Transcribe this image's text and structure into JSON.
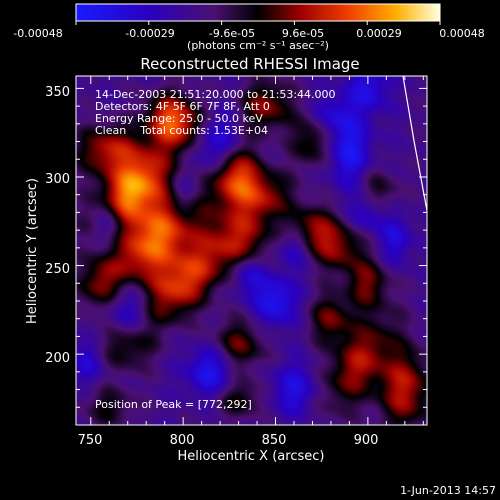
{
  "chart_data": {
    "type": "heatmap",
    "title": "Reconstructed RHESSI Image",
    "xlabel": "Heliocentric X (arcsec)",
    "ylabel": "Heliocentric Y (arcsec)",
    "xlim": [
      742,
      932
    ],
    "ylim": [
      160,
      357
    ],
    "x_ticks": [
      750,
      800,
      850,
      900
    ],
    "y_ticks": [
      200,
      250,
      300,
      350
    ],
    "colorbar": {
      "ticks": [
        "-0.00048",
        "-0.00029",
        "-9.6e-05",
        "9.6e-05",
        "0.00029",
        "0.00048"
      ],
      "label": "(photons cm⁻² s⁻¹ asec⁻²)",
      "range": [
        -0.00048,
        0.00048
      ]
    },
    "annotations": [
      "14-Dec-2003 21:51:20.000 to 21:53:44.000",
      "Detectors: 4F 5F 6F 7F 8F, Att 0",
      "Energy Range: 25.0 - 50.0 keV",
      "Clean    Total counts: 1.53E+04"
    ],
    "peak_text": "Position of Peak = [772,292]",
    "peak": [
      772,
      292
    ],
    "limb": [
      [
        919,
        357
      ],
      [
        925,
        320
      ],
      [
        932,
        281
      ]
    ],
    "blobs": [
      [
        772,
        292,
        0.95,
        10,
        18,
        -40
      ],
      [
        785,
        265,
        0.85,
        12,
        22,
        -40
      ],
      [
        800,
        240,
        0.7,
        10,
        18,
        -40
      ],
      [
        760,
        315,
        0.6,
        12,
        10,
        0
      ],
      [
        830,
        265,
        0.55,
        12,
        14,
        -30
      ],
      [
        845,
        290,
        0.45,
        10,
        10,
        0
      ],
      [
        828,
        300,
        0.75,
        9,
        12,
        0
      ],
      [
        800,
        330,
        0.55,
        12,
        10,
        20
      ],
      [
        845,
        340,
        0.5,
        10,
        10,
        0
      ],
      [
        870,
        320,
        0.4,
        8,
        10,
        0
      ],
      [
        790,
        335,
        0.4,
        8,
        10,
        0
      ],
      [
        870,
        270,
        0.5,
        9,
        10,
        0
      ],
      [
        885,
        260,
        0.45,
        9,
        10,
        0
      ],
      [
        895,
        195,
        0.55,
        10,
        20,
        -30
      ],
      [
        920,
        180,
        0.6,
        10,
        16,
        0
      ],
      [
        900,
        240,
        0.45,
        8,
        10,
        0
      ],
      [
        830,
        205,
        0.45,
        10,
        10,
        0
      ],
      [
        880,
        220,
        0.45,
        8,
        10,
        0
      ],
      [
        770,
        205,
        0.4,
        10,
        10,
        0
      ],
      [
        755,
        240,
        0.4,
        8,
        10,
        0
      ],
      [
        830,
        175,
        0.35,
        10,
        8,
        0
      ],
      [
        760,
        170,
        0.3,
        10,
        8,
        0
      ],
      [
        905,
        290,
        0.35,
        8,
        10,
        0
      ],
      [
        818,
        320,
        -0.5,
        8,
        14,
        0
      ],
      [
        760,
        275,
        -0.5,
        6,
        10,
        0
      ],
      [
        770,
        225,
        -0.4,
        8,
        12,
        0
      ],
      [
        815,
        190,
        -0.5,
        9,
        10,
        0
      ],
      [
        850,
        230,
        -0.5,
        8,
        10,
        0
      ],
      [
        860,
        180,
        -0.4,
        9,
        10,
        0
      ],
      [
        890,
        315,
        -0.5,
        8,
        14,
        0
      ],
      [
        900,
        350,
        -0.4,
        8,
        10,
        0
      ],
      [
        880,
        335,
        -0.3,
        7,
        8,
        0
      ],
      [
        835,
        245,
        -0.4,
        6,
        8,
        0
      ],
      [
        800,
        290,
        -0.3,
        6,
        10,
        0
      ],
      [
        915,
        265,
        -0.35,
        6,
        10,
        0
      ],
      [
        860,
        260,
        -0.35,
        6,
        8,
        0
      ],
      [
        748,
        195,
        -0.3,
        6,
        8,
        0
      ],
      [
        900,
        280,
        -0.4,
        7,
        8,
        0
      ]
    ]
  },
  "footer": {
    "date": "1-Jun-2013 14:57"
  }
}
